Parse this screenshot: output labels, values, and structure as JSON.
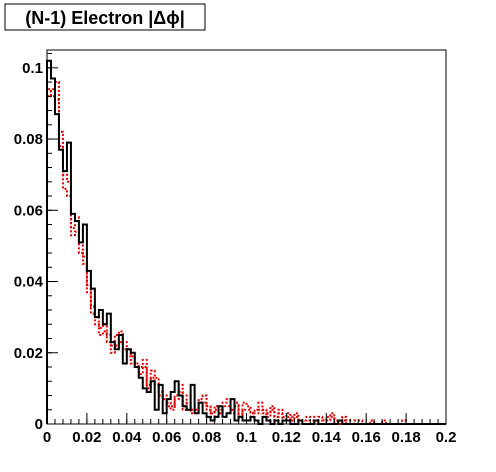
{
  "chart_data": {
    "type": "line",
    "title": "(N-1) Electron |Δϕ|",
    "xlabel": "",
    "ylabel": "",
    "xlim": [
      0,
      0.2
    ],
    "ylim": [
      0,
      0.105
    ],
    "x_ticks": [
      0,
      0.02,
      0.04,
      0.06,
      0.08,
      0.1,
      0.12,
      0.14,
      0.16,
      0.18,
      0.2
    ],
    "x_tick_labels": [
      "0",
      "0.02",
      "0.04",
      "0.06",
      "0.08",
      "0.1",
      "0.12",
      "0.14",
      "0.16",
      "0.18",
      "0.2"
    ],
    "y_ticks": [
      0,
      0.02,
      0.04,
      0.06,
      0.08,
      0.1
    ],
    "y_tick_labels": [
      "0",
      "0.02",
      "0.04",
      "0.06",
      "0.08",
      "0.1"
    ],
    "grid": false,
    "bin_width": 0.002,
    "series": [
      {
        "color": "#000000",
        "style": "solid",
        "values": [
          0.102,
          0.097,
          0.087,
          0.077,
          0.071,
          0.079,
          0.059,
          0.057,
          0.051,
          0.056,
          0.043,
          0.038,
          0.03,
          0.032,
          0.028,
          0.031,
          0.023,
          0.021,
          0.025,
          0.017,
          0.021,
          0.02,
          0.016,
          0.013,
          0.01,
          0.009,
          0.012,
          0.004,
          0.011,
          0.003,
          0.007,
          0.009,
          0.012,
          0.008,
          0.005,
          0.004,
          0.011,
          0.003,
          0.006,
          0.003,
          0.002,
          0.001,
          0.002,
          0.005,
          0.002,
          0.003,
          0.007,
          0.001,
          0.002,
          0.001,
          0.001,
          0.002,
          0.001,
          0.0,
          0.002,
          0.001,
          0.0,
          0.001,
          0.0,
          0.001,
          0.001,
          0.0,
          0.0,
          0.001,
          0.0,
          0.0,
          0.0,
          0.001,
          0.0,
          0.0,
          0.0,
          0.0,
          0.0,
          0.001,
          0.0,
          0.0,
          0.0,
          0.0,
          0.0,
          0.0,
          0.0,
          0.0,
          0.0,
          0.0,
          0.0,
          0.0,
          0.0,
          0.0,
          0.0,
          0.0,
          0.0,
          0.0,
          0.0,
          0.0,
          0.0,
          0.0,
          0.0,
          0.0,
          0.0,
          0.0
        ]
      },
      {
        "color": "#e00000",
        "style": "dotted",
        "values": [
          0.094,
          0.092,
          0.096,
          0.082,
          0.07,
          0.068,
          0.055,
          0.058,
          0.051,
          0.047,
          0.039,
          0.033,
          0.03,
          0.027,
          0.028,
          0.025,
          0.022,
          0.025,
          0.026,
          0.023,
          0.021,
          0.019,
          0.017,
          0.016,
          0.018,
          0.011,
          0.015,
          0.013,
          0.009,
          0.008,
          0.006,
          0.005,
          0.008,
          0.011,
          0.005,
          0.008,
          0.004,
          0.004,
          0.007,
          0.008,
          0.005,
          0.003,
          0.005,
          0.004,
          0.006,
          0.007,
          0.004,
          0.006,
          0.003,
          0.006,
          0.005,
          0.003,
          0.004,
          0.006,
          0.004,
          0.003,
          0.005,
          0.002,
          0.004,
          0.002,
          0.003,
          0.002,
          0.003,
          0.001,
          0.001,
          0.002,
          0.002,
          0.001,
          0.002,
          0.001,
          0.002,
          0.003,
          0.001,
          0.001,
          0.002,
          0.001,
          0.0,
          0.001,
          0.001,
          0.0,
          0.0,
          0.001,
          0.0,
          0.0,
          0.001,
          0.0,
          0.0,
          0.0,
          0.0,
          0.001,
          0.0,
          0.0,
          0.0,
          0.0,
          0.0,
          0.0,
          0.0,
          0.0,
          0.0,
          0.0
        ]
      },
      {
        "color": "#e00000",
        "style": "dotted",
        "values": [
          0.092,
          0.094,
          0.091,
          0.078,
          0.066,
          0.064,
          0.053,
          0.054,
          0.048,
          0.045,
          0.037,
          0.031,
          0.028,
          0.025,
          0.026,
          0.023,
          0.02,
          0.022,
          0.023,
          0.021,
          0.019,
          0.017,
          0.016,
          0.014,
          0.016,
          0.01,
          0.013,
          0.011,
          0.008,
          0.007,
          0.005,
          0.004,
          0.007,
          0.009,
          0.004,
          0.006,
          0.003,
          0.003,
          0.006,
          0.006,
          0.004,
          0.002,
          0.004,
          0.003,
          0.005,
          0.005,
          0.003,
          0.005,
          0.002,
          0.004,
          0.004,
          0.002,
          0.003,
          0.004,
          0.003,
          0.002,
          0.004,
          0.001,
          0.003,
          0.001,
          0.002,
          0.001,
          0.002,
          0.001,
          0.001,
          0.001,
          0.001,
          0.0,
          0.001,
          0.0,
          0.001,
          0.002,
          0.0,
          0.0,
          0.001,
          0.0,
          0.0,
          0.0,
          0.0,
          0.0,
          0.0,
          0.0,
          0.0,
          0.0,
          0.0,
          0.0,
          0.0,
          0.0,
          0.0,
          0.0,
          0.0,
          0.0,
          0.0,
          0.0,
          0.0,
          0.0,
          0.0,
          0.0,
          0.0,
          0.0
        ]
      }
    ]
  }
}
